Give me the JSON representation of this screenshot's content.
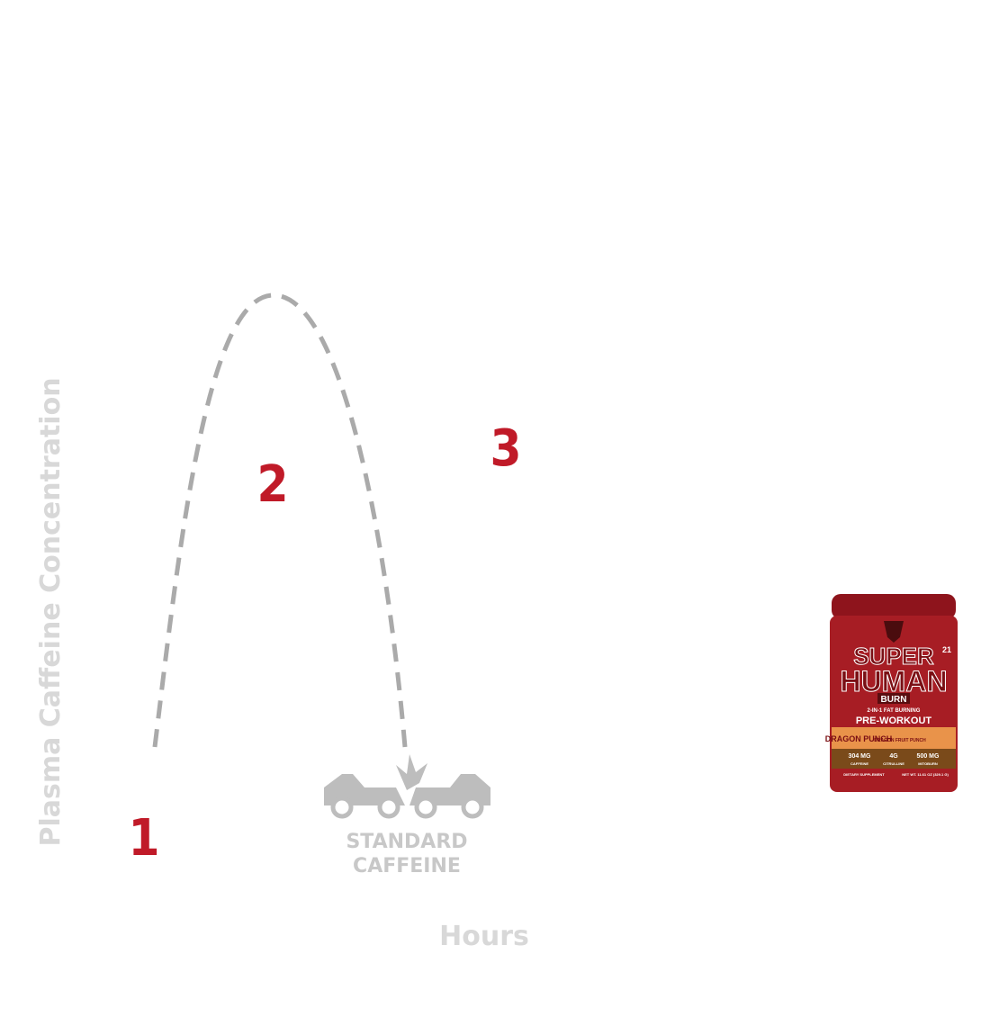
{
  "axes": {
    "y_label": "Plasma Caffeine Concentration",
    "x_label": "Hours"
  },
  "markers": [
    "1",
    "2",
    "3"
  ],
  "curve_label": [
    "STANDARD",
    "CAFFEINE"
  ],
  "product": {
    "brand_line1": "SUPER",
    "brand_line2": "HUMAN",
    "variant": "BURN",
    "tagline": "2-IN-1 FAT BURNING",
    "type": "PRE-WORKOUT",
    "flavor": "DRAGON PUNCH",
    "flavor_detail": "DRAGON FRUIT PUNCH",
    "servings": "21",
    "stats": [
      {
        "amount": "304 MG",
        "name": "CAFFEINE"
      },
      {
        "amount": "4G",
        "name": "CITRULLINE"
      },
      {
        "amount": "500 MG",
        "name": "MITOBURN"
      }
    ],
    "footer_left": "DIETARY SUPPLEMENT",
    "footer_right": "NET WT. 11.61 OZ (329.1 G)"
  }
}
